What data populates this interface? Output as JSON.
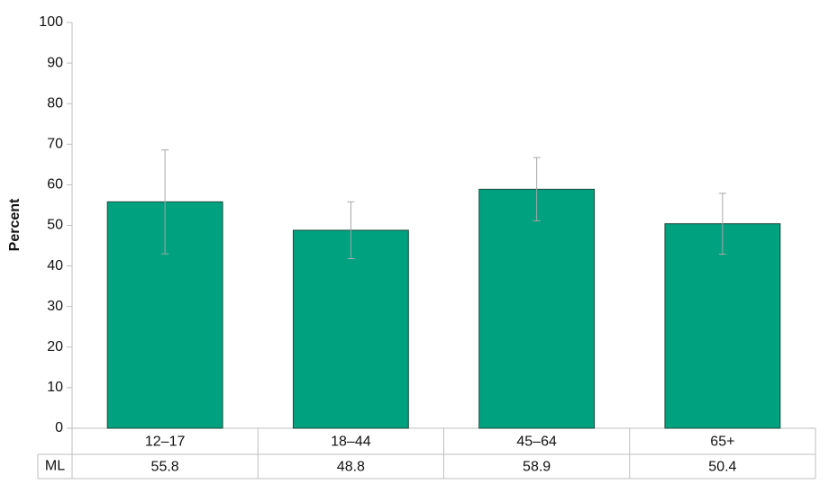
{
  "chart_data": {
    "type": "bar",
    "y_label": "Percent",
    "categories": [
      "12–17",
      "18–44",
      "45–64",
      "65+"
    ],
    "values": [
      55.8,
      48.8,
      58.9,
      50.4
    ],
    "errors": [
      12.8,
      7.0,
      7.8,
      7.5
    ],
    "color": "#00a17f",
    "error_color": "#a6a6a6",
    "table_row_label": "ML",
    "ylim": [
      0,
      100
    ],
    "yticks": [
      0,
      10,
      20,
      30,
      40,
      50,
      60,
      70,
      80,
      90,
      100
    ],
    "grid": false
  }
}
